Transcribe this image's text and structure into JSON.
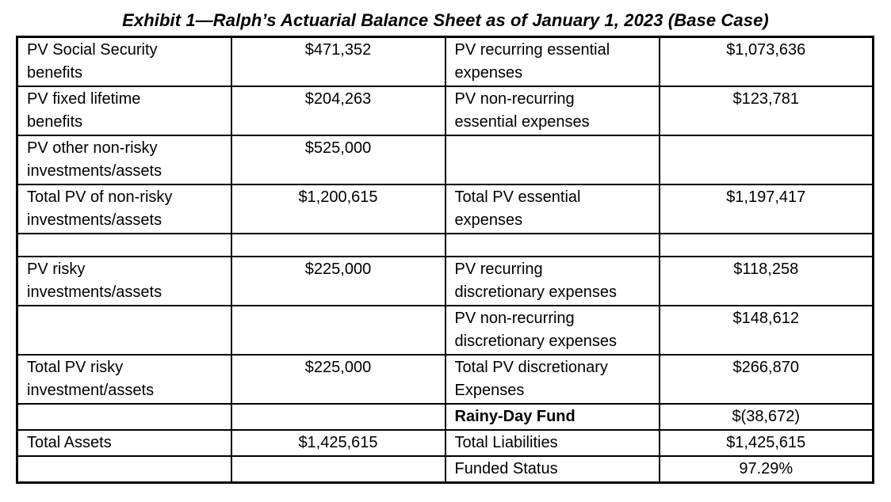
{
  "page": {
    "title": "Exhibit 1—Ralph’s Actuarial Balance Sheet as of January 1, 2023 (Base Case)"
  },
  "table": {
    "rows": [
      {
        "left_label": "PV Social Security\nbenefits",
        "left_value": "$471,352",
        "right_label": "PV recurring essential\nexpenses",
        "right_value": "$1,073,636"
      },
      {
        "left_label": "PV fixed lifetime\nbenefits",
        "left_value": "$204,263",
        "right_label": "PV non-recurring\nessential expenses",
        "right_value": "$123,781"
      },
      {
        "left_label": "PV other non-risky\ninvestments/assets",
        "left_value": "$525,000",
        "right_label": "",
        "right_value": ""
      },
      {
        "left_label": "Total PV of non-risky\ninvestments/assets",
        "left_value": "$1,200,615",
        "right_label": "Total PV essential\nexpenses",
        "right_value": "$1,197,417"
      },
      {
        "left_label": "",
        "left_value": "",
        "right_label": "",
        "right_value": ""
      },
      {
        "left_label": "PV risky\ninvestments/assets",
        "left_value": "$225,000",
        "right_label": "PV recurring\ndiscretionary expenses",
        "right_value": "$118,258"
      },
      {
        "left_label": "",
        "left_value": "",
        "right_label": "PV non-recurring\ndiscretionary expenses",
        "right_value": "$148,612"
      },
      {
        "left_label": "Total PV risky\ninvestment/assets",
        "left_value": "$225,000",
        "right_label": "Total PV discretionary\nExpenses",
        "right_value": "$266,870"
      },
      {
        "left_label": "",
        "left_value": "",
        "right_label": "Rainy-Day Fund",
        "right_value": "$(38,672)"
      },
      {
        "left_label": "Total Assets",
        "left_value": "$1,425,615",
        "right_label": "Total Liabilities",
        "right_value": "$1,425,615"
      },
      {
        "left_label": "",
        "left_value": "",
        "right_label": "Funded Status",
        "right_value": "97.29%"
      }
    ]
  }
}
